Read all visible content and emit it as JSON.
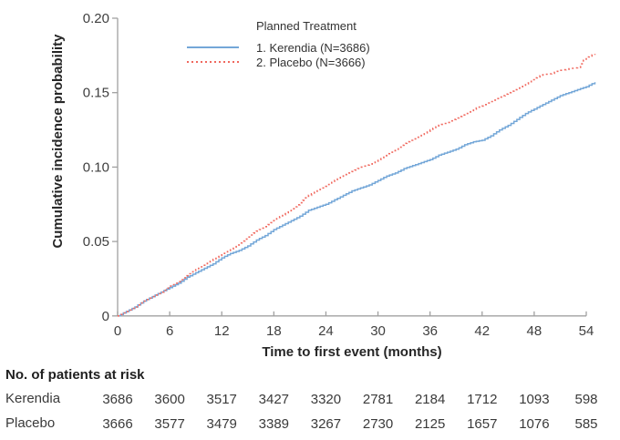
{
  "chart_data": {
    "type": "line",
    "title": "",
    "xlabel": "Time to first event (months)",
    "ylabel": "Cumulative incidence probability",
    "xlim": [
      0,
      54
    ],
    "ylim": [
      0,
      0.2
    ],
    "x_ticks": [
      0,
      6,
      12,
      18,
      24,
      30,
      36,
      42,
      48,
      54
    ],
    "y_ticks": [
      0,
      0.05,
      0.1,
      0.15,
      0.2
    ],
    "y_tick_labels": [
      "0",
      "0.05",
      "0.10",
      "0.15",
      "0.20"
    ],
    "grid": "off",
    "legend": {
      "title": "Planned Treatment",
      "position": "top-left-inside"
    },
    "series": [
      {
        "name": "1. Kerendia (N=3686)",
        "color": "#74A7D8",
        "style": "solid",
        "x": [
          0,
          1,
          2,
          3,
          4,
          5,
          6,
          7,
          8,
          9,
          10,
          11,
          12,
          13,
          14,
          15,
          16,
          17,
          18,
          19,
          20,
          21,
          22,
          23,
          24,
          25,
          26,
          27,
          28,
          29,
          30,
          31,
          32,
          33,
          34,
          35,
          36,
          37,
          38,
          39,
          40,
          41,
          42,
          43,
          44,
          45,
          46,
          47,
          48,
          49,
          50,
          51,
          52,
          53,
          54,
          55
        ],
        "y": [
          0,
          0.003,
          0.006,
          0.01,
          0.013,
          0.016,
          0.019,
          0.022,
          0.026,
          0.029,
          0.032,
          0.035,
          0.039,
          0.042,
          0.044,
          0.047,
          0.051,
          0.054,
          0.058,
          0.061,
          0.064,
          0.067,
          0.071,
          0.073,
          0.075,
          0.078,
          0.081,
          0.084,
          0.086,
          0.088,
          0.091,
          0.094,
          0.096,
          0.099,
          0.101,
          0.103,
          0.105,
          0.108,
          0.11,
          0.112,
          0.115,
          0.117,
          0.118,
          0.121,
          0.125,
          0.128,
          0.132,
          0.136,
          0.139,
          0.142,
          0.145,
          0.148,
          0.15,
          0.152,
          0.154,
          0.157
        ]
      },
      {
        "name": "2. Placebo (N=3666)",
        "color": "#F0685E",
        "style": "dotted",
        "x": [
          0,
          1,
          2,
          3,
          4,
          5,
          6,
          7,
          8,
          9,
          10,
          11,
          12,
          13,
          14,
          15,
          16,
          17,
          18,
          19,
          20,
          21,
          22,
          23,
          24,
          25,
          26,
          27,
          28,
          29,
          30,
          31,
          32,
          33,
          34,
          35,
          36,
          37,
          38,
          39,
          40,
          41,
          42,
          43,
          44,
          45,
          46,
          47,
          48,
          49,
          50,
          51,
          52,
          53,
          54,
          55
        ],
        "y": [
          0,
          0.003,
          0.006,
          0.01,
          0.013,
          0.016,
          0.02,
          0.023,
          0.027,
          0.031,
          0.034,
          0.038,
          0.042,
          0.045,
          0.049,
          0.053,
          0.057,
          0.06,
          0.064,
          0.068,
          0.072,
          0.076,
          0.081,
          0.084,
          0.087,
          0.091,
          0.094,
          0.097,
          0.1,
          0.102,
          0.105,
          0.109,
          0.112,
          0.116,
          0.119,
          0.122,
          0.125,
          0.128,
          0.13,
          0.133,
          0.136,
          0.139,
          0.141,
          0.144,
          0.147,
          0.15,
          0.153,
          0.156,
          0.16,
          0.162,
          0.163,
          0.165,
          0.166,
          0.167,
          0.174,
          0.176
        ]
      }
    ]
  },
  "at_risk": {
    "heading": "No. of patients at risk",
    "months": [
      0,
      6,
      12,
      18,
      24,
      30,
      36,
      42,
      48,
      54
    ],
    "rows": [
      {
        "label": "Kerendia",
        "counts": [
          "3686",
          "3600",
          "3517",
          "3427",
          "3320",
          "2781",
          "2184",
          "1712",
          "1093",
          "598"
        ]
      },
      {
        "label": "Placebo",
        "counts": [
          "3666",
          "3577",
          "3479",
          "3389",
          "3267",
          "2730",
          "2125",
          "1657",
          "1076",
          "585"
        ]
      }
    ]
  },
  "colors": {
    "kerendia_line": "#74A7D8",
    "placebo_line": "#F0685E",
    "axis_line": "#A0A0A0",
    "tick_text": "#3F3F3F",
    "bold_text": "#262626"
  }
}
